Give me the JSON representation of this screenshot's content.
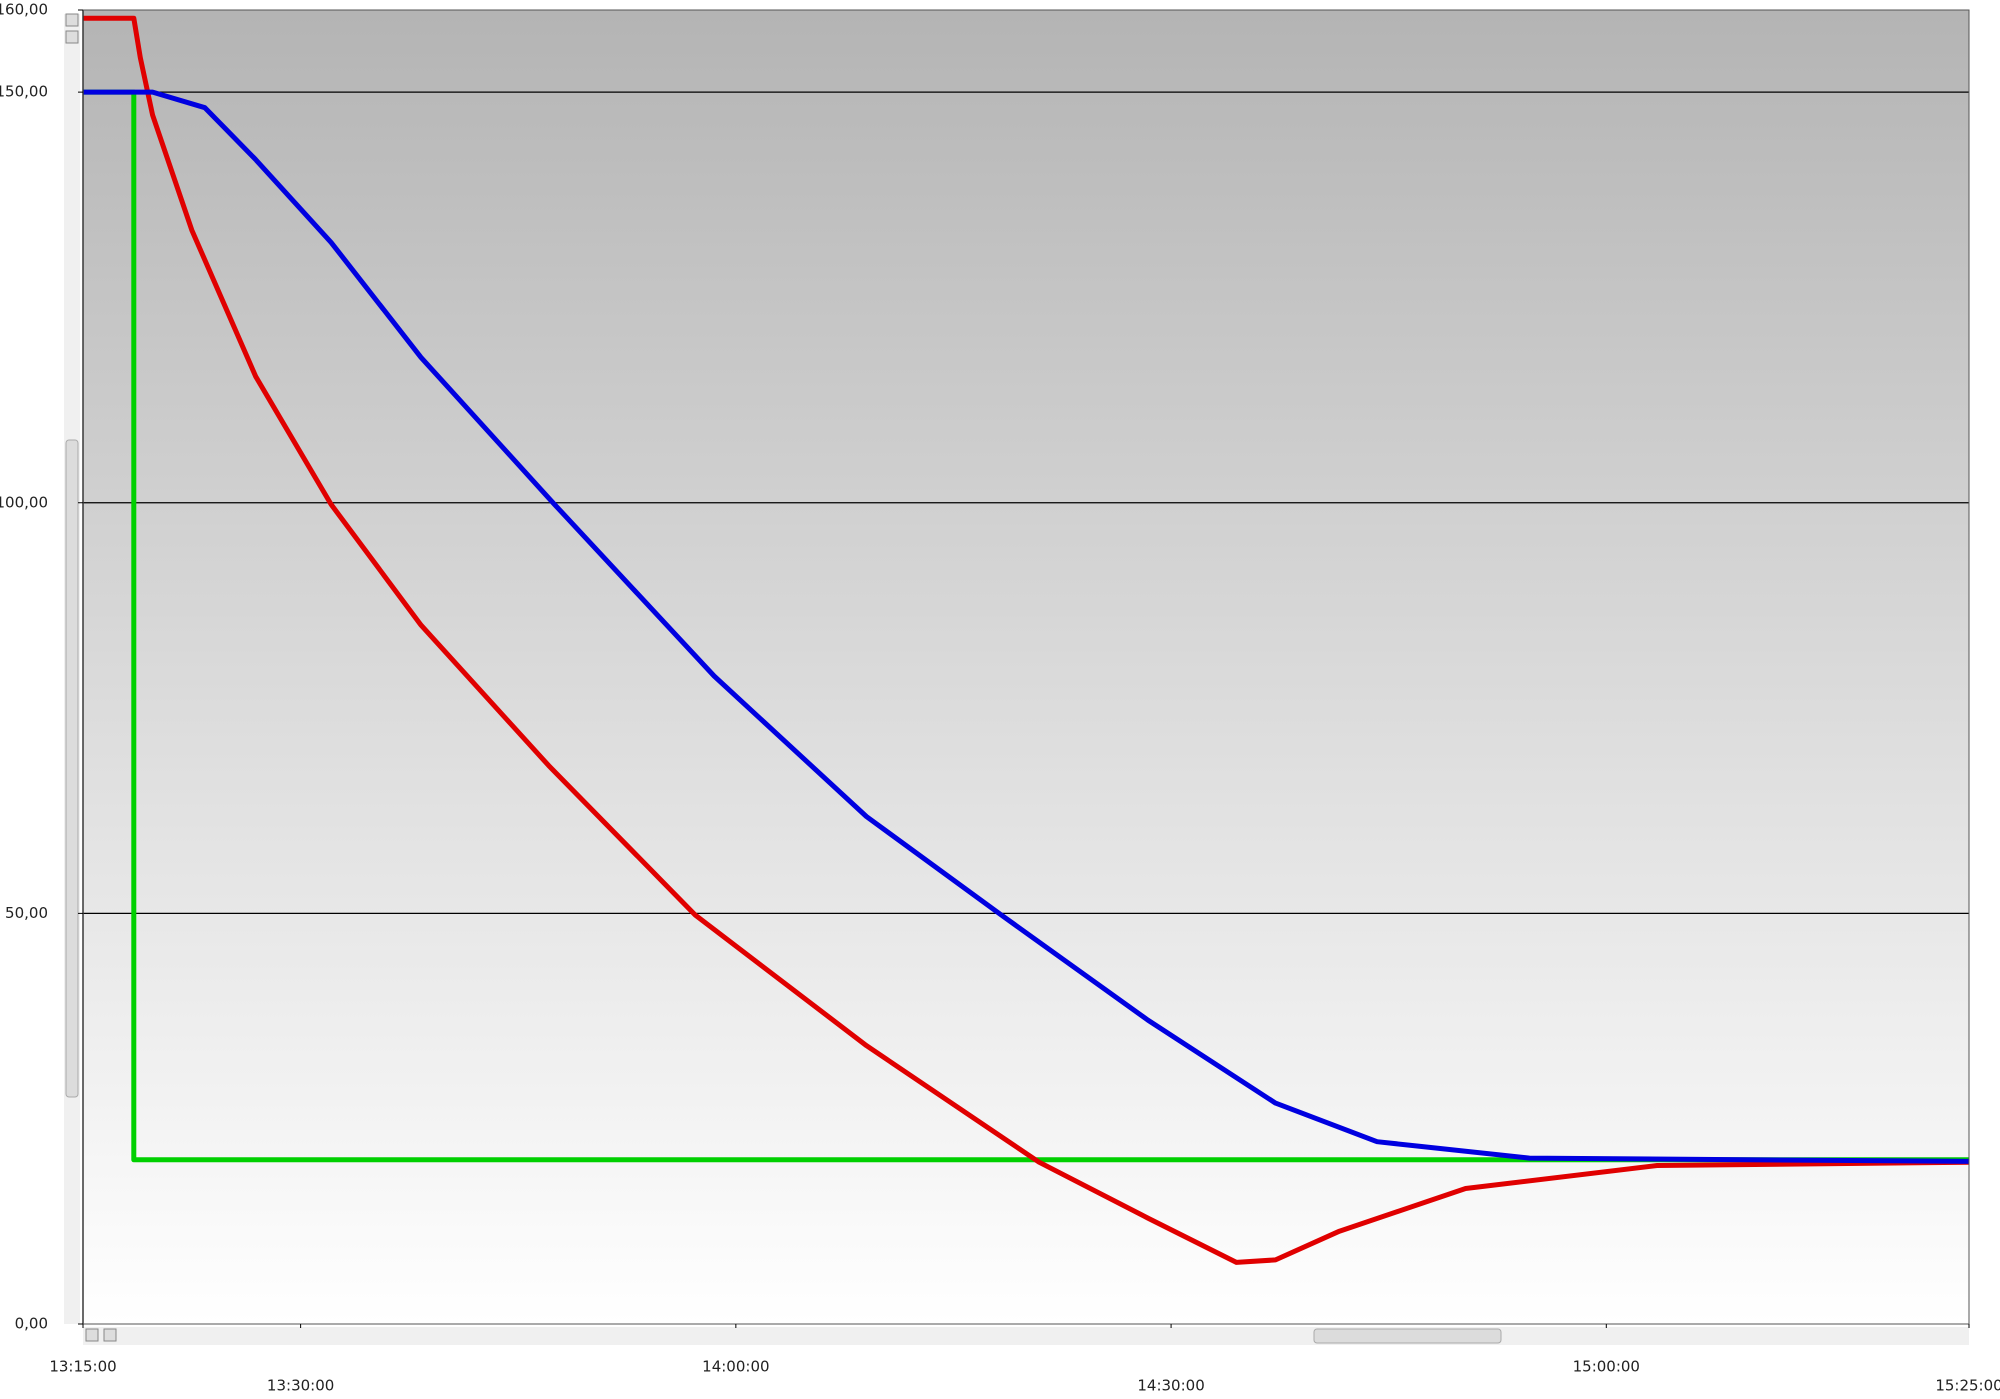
{
  "chart_data": {
    "type": "line",
    "xlim": [
      "13:15:00",
      "15:25:00"
    ],
    "xticks": [
      "13:15:00",
      "13:30:00",
      "14:00:00",
      "14:30:00",
      "15:00:00",
      "15:25:00"
    ],
    "ylim": [
      0,
      160
    ],
    "yticks": [
      {
        "value": 0,
        "label": "0,00"
      },
      {
        "value": 50,
        "label": "50,00"
      },
      {
        "value": 100,
        "label": "100,00"
      },
      {
        "value": 150,
        "label": "150,00"
      },
      {
        "value": 160,
        "label": "160,00"
      }
    ],
    "grid": true,
    "series": [
      {
        "color": "#00d000",
        "x": [
          "13:15:00",
          "13:18:30",
          "13:18:30",
          "15:25:00"
        ],
        "values": [
          150,
          150,
          20,
          20
        ]
      },
      {
        "color": "#e00000",
        "x": [
          "13:15:00",
          "13:18:30",
          "13:18:57",
          "13:19:48",
          "13:22:30",
          "13:26:54",
          "13:32:06",
          "13:38:18",
          "13:47:06",
          "13:57:12",
          "14:09:00",
          "14:20:54",
          "14:28:24",
          "14:34:30",
          "14:37:12",
          "14:41:36",
          "14:50:18",
          "15:03:30",
          "15:25:00"
        ],
        "values": [
          159,
          159,
          154.2,
          147.2,
          133.2,
          115.4,
          99.8,
          85.1,
          68.0,
          49.8,
          33.9,
          19.7,
          12.9,
          7.5,
          7.8,
          11.3,
          16.5,
          19.3,
          19.7
        ]
      },
      {
        "color": "#0000e0",
        "x": [
          "13:15:00",
          "13:19:48",
          "13:23:24",
          "13:26:54",
          "13:32:06",
          "13:38:18",
          "13:47:30",
          "13:58:30",
          "14:09:00",
          "14:18:18",
          "14:28:24",
          "14:37:12",
          "14:44:12",
          "14:54:42",
          "15:25:00"
        ],
        "values": [
          150,
          150,
          148.1,
          141.8,
          131.7,
          117.7,
          99.8,
          78.9,
          61.8,
          49.8,
          37.0,
          26.9,
          22.2,
          20.2,
          19.8
        ]
      }
    ]
  }
}
